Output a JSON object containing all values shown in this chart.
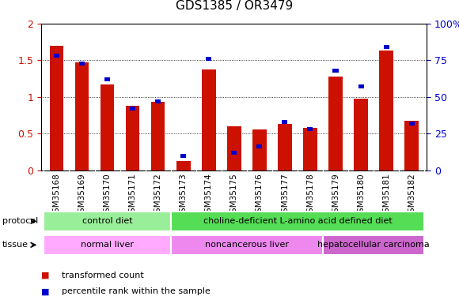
{
  "title": "GDS1385 / OR3479",
  "samples": [
    "GSM35168",
    "GSM35169",
    "GSM35170",
    "GSM35171",
    "GSM35172",
    "GSM35173",
    "GSM35174",
    "GSM35175",
    "GSM35176",
    "GSM35177",
    "GSM35178",
    "GSM35179",
    "GSM35180",
    "GSM35181",
    "GSM35182"
  ],
  "transformed_count": [
    1.7,
    1.47,
    1.17,
    0.88,
    0.93,
    0.12,
    1.38,
    0.6,
    0.56,
    0.63,
    0.58,
    1.28,
    0.98,
    1.63,
    0.67
  ],
  "percentile_rank": [
    78,
    73,
    62,
    42,
    47,
    10,
    76,
    12,
    16,
    33,
    28,
    68,
    57,
    84,
    32
  ],
  "bar_color": "#cc1100",
  "dot_color": "#0000cc",
  "ylim_left": [
    0,
    2
  ],
  "ylim_right": [
    0,
    100
  ],
  "yticks_left": [
    0,
    0.5,
    1.0,
    1.5,
    2.0
  ],
  "yticks_right": [
    0,
    25,
    50,
    75,
    100
  ],
  "ytick_right_labels": [
    "0",
    "25",
    "50",
    "75",
    "100%"
  ],
  "protocol_groups": [
    {
      "label": "control diet",
      "start": 0,
      "end": 4,
      "color": "#99ee99"
    },
    {
      "label": "choline-deficient L-amino acid defined diet",
      "start": 5,
      "end": 14,
      "color": "#55dd55"
    }
  ],
  "tissue_groups": [
    {
      "label": "normal liver",
      "start": 0,
      "end": 4,
      "color": "#ffaaff"
    },
    {
      "label": "noncancerous liver",
      "start": 5,
      "end": 10,
      "color": "#ee88ee"
    },
    {
      "label": "hepatocellular carcinoma",
      "start": 11,
      "end": 14,
      "color": "#cc66cc"
    }
  ],
  "legend_items": [
    {
      "label": "transformed count",
      "color": "#cc1100"
    },
    {
      "label": "percentile rank within the sample",
      "color": "#0000cc"
    }
  ],
  "protocol_label": "protocol",
  "tissue_label": "tissue",
  "xlabels_bg": "#cccccc"
}
